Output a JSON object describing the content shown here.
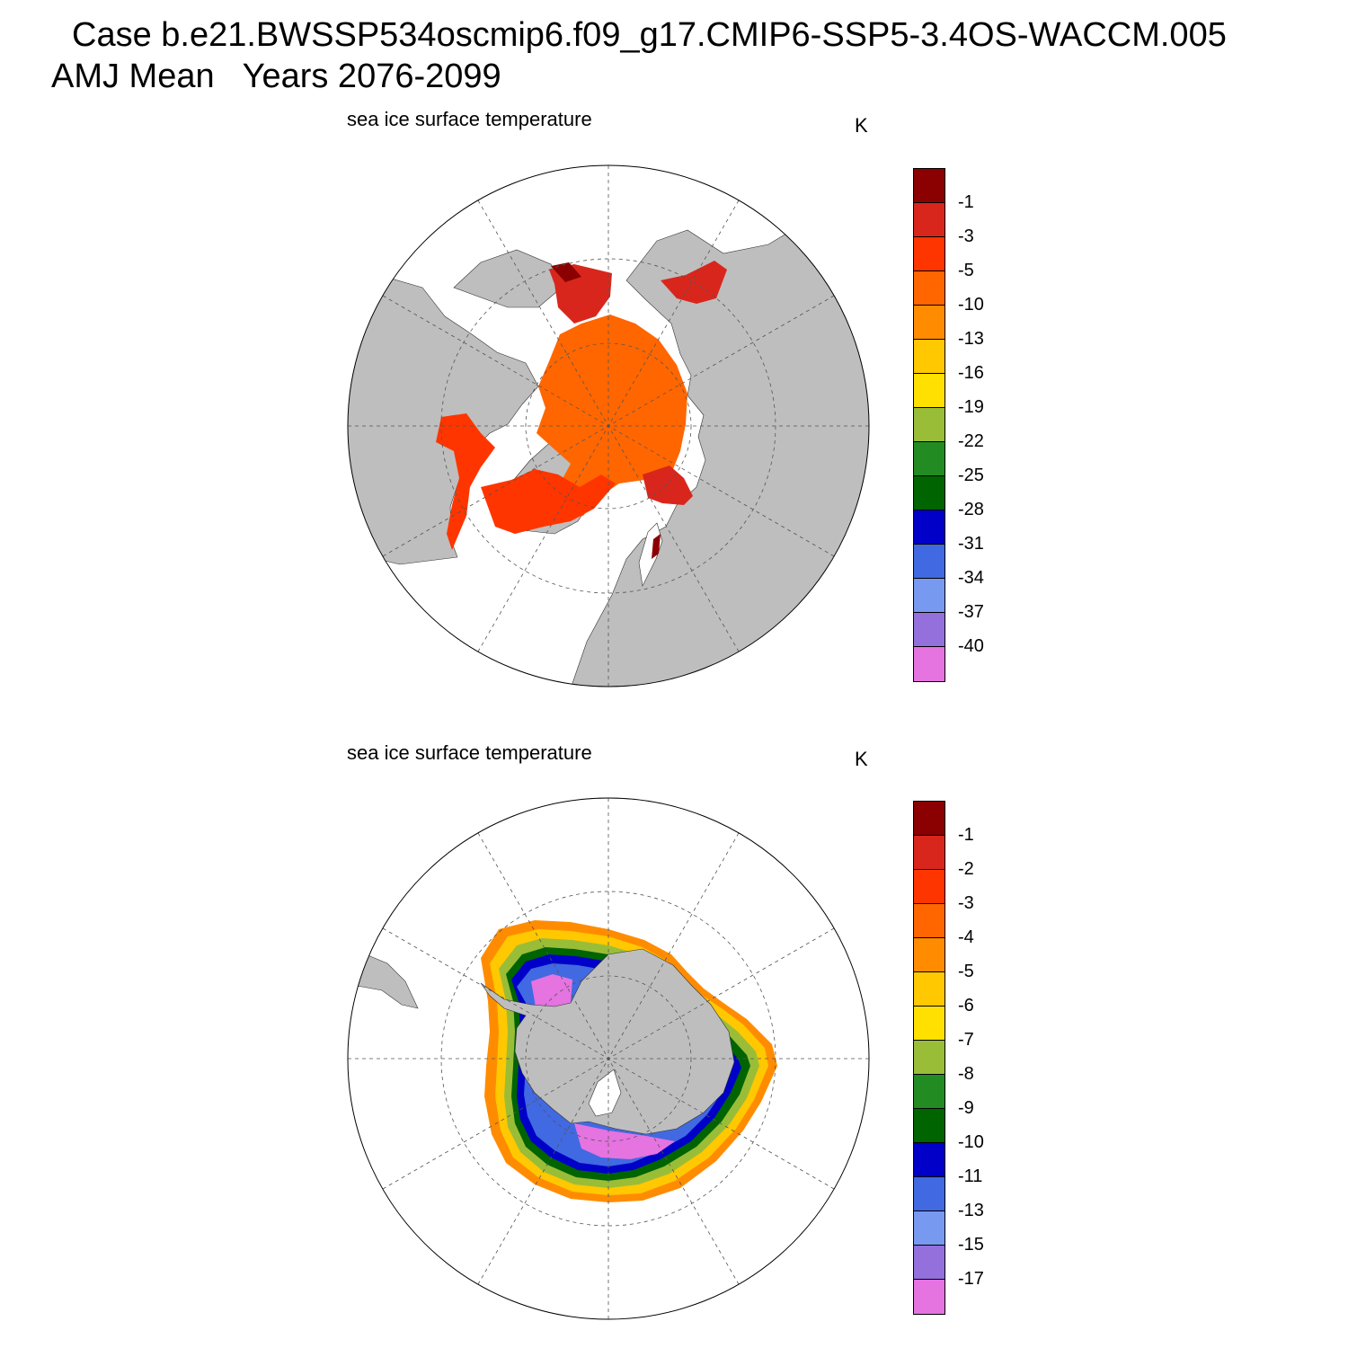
{
  "header": {
    "line1": "Case b.e21.BWSSP534oscmip6.f09_g17.CMIP6-SSP5-3.4OS-WACCM.005",
    "line2": "AMJ Mean   Years 2076-2099"
  },
  "panels": [
    {
      "hemisphere": "north",
      "title": "sea ice surface temperature",
      "unit": "K",
      "colorbar_labels": [
        "-1",
        "-3",
        "-5",
        "-10",
        "-13",
        "-16",
        "-19",
        "-22",
        "-25",
        "-28",
        "-31",
        "-34",
        "-37",
        "-40"
      ]
    },
    {
      "hemisphere": "south",
      "title": "sea ice surface temperature",
      "unit": "K",
      "colorbar_labels": [
        "-1",
        "-2",
        "-3",
        "-4",
        "-5",
        "-6",
        "-7",
        "-8",
        "-9",
        "-10",
        "-11",
        "-13",
        "-15",
        "-17"
      ]
    }
  ],
  "colors": {
    "scale": [
      "#8b0000",
      "#d9261c",
      "#ff3500",
      "#ff6600",
      "#ff8c00",
      "#ffb300",
      "#ffc800",
      "#ffe000",
      "#9abd38",
      "#228b22",
      "#006400",
      "#0000c8",
      "#4169e1",
      "#7799f0",
      "#9370db",
      "#e573e0"
    ],
    "land": "#bebebe",
    "ocean": "#ffffff",
    "grid": "#555555"
  },
  "chart_data": [
    {
      "type": "map",
      "projection": "north polar stereographic",
      "variable": "sea ice surface temperature",
      "unit": "K",
      "levels": [
        -1,
        -3,
        -5,
        -10,
        -13,
        -16,
        -19,
        -22,
        -25,
        -28,
        -31,
        -34,
        -37,
        -40
      ],
      "summary": "Central Arctic ice mostly in the -10 to -5 class; marginal seas (Hudson Bay, Baffin Bay, Okhotsk, Bering) -5 to -1"
    },
    {
      "type": "map",
      "projection": "south polar stereographic",
      "variable": "sea ice surface temperature",
      "unit": "K",
      "levels": [
        -1,
        -2,
        -3,
        -4,
        -5,
        -6,
        -7,
        -8,
        -9,
        -10,
        -11,
        -13,
        -15,
        -17
      ],
      "summary": "Ring of sea ice around Antarctica: outer edge -4 to -6, grading through green and blue to below -17 in Ross and Weddell seas"
    }
  ]
}
